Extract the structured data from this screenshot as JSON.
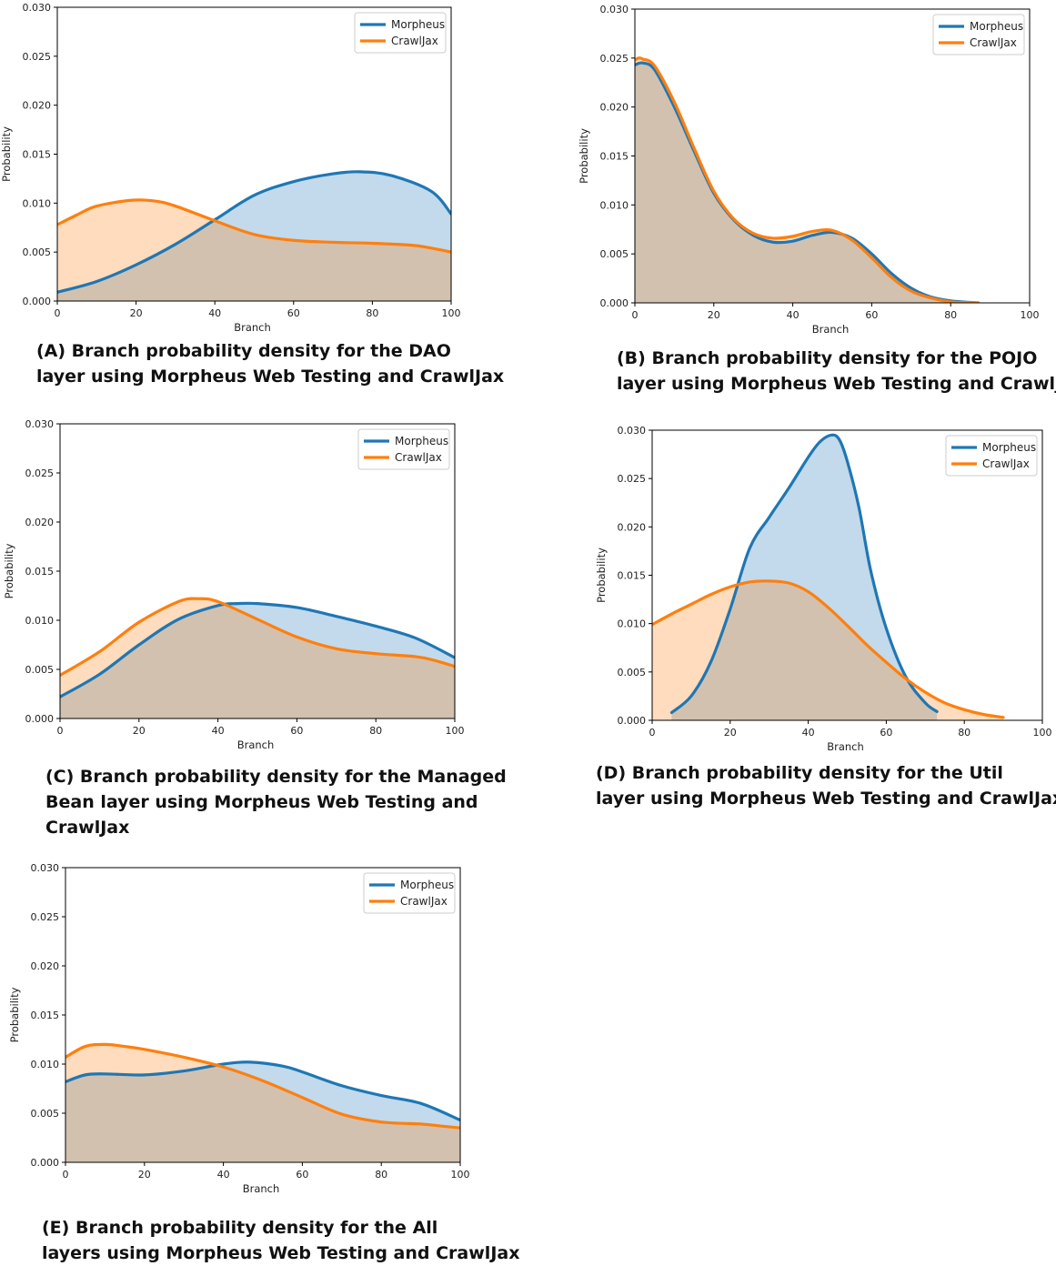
{
  "colors": {
    "morpheus": "#1f77b4",
    "crawljax": "#ff7f0e",
    "morpheus_fill": "#c3d9ec",
    "crawljax_fill": "#fdd9bd",
    "overlap_fill": "#d3c2b2"
  },
  "chart_data": [
    {
      "type": "area",
      "caption_lines": [
        "(A) Branch probability density for the DAO",
        "layer using Morpheus Web Testing and CrawlJax"
      ],
      "xlabel": "Branch",
      "ylabel": "Probability",
      "xlim": [
        0,
        100
      ],
      "ylim": [
        0,
        0.03
      ],
      "xticks": [
        "0",
        "20",
        "40",
        "60",
        "80",
        "100"
      ],
      "yticks": [
        "0.000",
        "0.005",
        "0.010",
        "0.015",
        "0.020",
        "0.025",
        "0.030"
      ],
      "legend_position": "top-right",
      "series": [
        {
          "name": "Morpheus",
          "x": [
            0,
            10,
            20,
            30,
            40,
            50,
            60,
            70,
            77,
            85,
            95,
            100
          ],
          "y": [
            0.0009,
            0.002,
            0.0037,
            0.0058,
            0.0083,
            0.0108,
            0.0122,
            0.013,
            0.0132,
            0.0128,
            0.0112,
            0.0089
          ]
        },
        {
          "name": "CrawlJax",
          "x": [
            0,
            5,
            10,
            19,
            25,
            30,
            40,
            50,
            60,
            70,
            80,
            90,
            95,
            100
          ],
          "y": [
            0.0078,
            0.0088,
            0.0097,
            0.0103,
            0.0102,
            0.0097,
            0.0082,
            0.0068,
            0.0062,
            0.006,
            0.0059,
            0.0057,
            0.0054,
            0.005
          ]
        }
      ]
    },
    {
      "type": "area",
      "caption_lines": [
        "(B) Branch probability density for the POJO",
        "layer using Morpheus Web Testing and Crawljax"
      ],
      "xlabel": "Branch",
      "ylabel": "Probability",
      "xlim": [
        0,
        100
      ],
      "ylim": [
        0,
        0.03
      ],
      "xticks": [
        "0",
        "20",
        "40",
        "60",
        "80",
        "100"
      ],
      "yticks": [
        "0.000",
        "0.005",
        "0.010",
        "0.015",
        "0.020",
        "0.025",
        "0.030"
      ],
      "legend_position": "top-right",
      "series": [
        {
          "name": "Morpheus",
          "x": [
            0,
            2,
            5,
            10,
            15,
            20,
            25,
            30,
            35,
            40,
            45,
            50,
            55,
            60,
            65,
            70,
            75,
            80,
            85,
            87
          ],
          "y": [
            0.0243,
            0.0245,
            0.0238,
            0.02,
            0.0155,
            0.0112,
            0.0085,
            0.0069,
            0.0062,
            0.0063,
            0.0069,
            0.0072,
            0.0066,
            0.005,
            0.003,
            0.0015,
            0.0006,
            0.0002,
            5e-05,
            0.0
          ]
        },
        {
          "name": "CrawlJax",
          "x": [
            0,
            1,
            2,
            5,
            10,
            15,
            20,
            25,
            30,
            35,
            40,
            45,
            50,
            55,
            60,
            65,
            70,
            75,
            80,
            85,
            87
          ],
          "y": [
            0.0248,
            0.025,
            0.0249,
            0.0242,
            0.0205,
            0.0158,
            0.0114,
            0.0086,
            0.0071,
            0.0066,
            0.0068,
            0.0073,
            0.0074,
            0.0064,
            0.0046,
            0.0026,
            0.0012,
            0.0005,
            0.0001,
            3e-05,
            0.0
          ]
        }
      ]
    },
    {
      "type": "area",
      "caption_lines": [
        "(C) Branch probability density for the Managed",
        "Bean layer using Morpheus Web Testing and",
        "CrawlJax"
      ],
      "xlabel": "Branch",
      "ylabel": "Probability",
      "xlim": [
        0,
        100
      ],
      "ylim": [
        0,
        0.03
      ],
      "xticks": [
        "0",
        "20",
        "40",
        "60",
        "80",
        "100"
      ],
      "yticks": [
        "0.000",
        "0.005",
        "0.010",
        "0.015",
        "0.020",
        "0.025",
        "0.030"
      ],
      "legend_position": "top-right",
      "series": [
        {
          "name": "Morpheus",
          "x": [
            0,
            10,
            20,
            30,
            40,
            45,
            50,
            60,
            70,
            80,
            90,
            100
          ],
          "y": [
            0.0022,
            0.0045,
            0.0075,
            0.0101,
            0.0115,
            0.0117,
            0.0117,
            0.0113,
            0.0104,
            0.0094,
            0.0082,
            0.0062
          ]
        },
        {
          "name": "CrawlJax",
          "x": [
            0,
            10,
            20,
            30,
            35,
            40,
            50,
            60,
            70,
            80,
            90,
            95,
            100
          ],
          "y": [
            0.0044,
            0.0068,
            0.0098,
            0.0119,
            0.0122,
            0.0119,
            0.0101,
            0.0083,
            0.0071,
            0.0066,
            0.0063,
            0.0059,
            0.0053
          ]
        }
      ]
    },
    {
      "type": "area",
      "caption_lines": [
        "(D) Branch probability density for the Util",
        "layer using Morpheus Web Testing and CrawlJax"
      ],
      "xlabel": "Branch",
      "ylabel": "Probability",
      "xlim": [
        0,
        100
      ],
      "ylim": [
        0,
        0.03
      ],
      "xticks": [
        "0",
        "20",
        "40",
        "60",
        "80",
        "100"
      ],
      "yticks": [
        "0.000",
        "0.005",
        "0.010",
        "0.015",
        "0.020",
        "0.025",
        "0.030"
      ],
      "legend_position": "top-right",
      "series": [
        {
          "name": "Morpheus",
          "x": [
            5,
            10,
            15,
            20,
            25,
            30,
            35,
            40,
            43,
            46,
            48,
            50,
            53,
            56,
            60,
            65,
            70,
            73
          ],
          "y": [
            0.0008,
            0.0025,
            0.006,
            0.0115,
            0.0178,
            0.021,
            0.024,
            0.0272,
            0.0288,
            0.0295,
            0.029,
            0.0268,
            0.022,
            0.0155,
            0.0095,
            0.0045,
            0.0018,
            0.0009
          ]
        },
        {
          "name": "CrawlJax",
          "x": [
            0,
            5,
            10,
            15,
            20,
            25,
            30,
            35,
            40,
            45,
            50,
            55,
            60,
            65,
            70,
            75,
            80,
            85,
            90
          ],
          "y": [
            0.0099,
            0.011,
            0.012,
            0.013,
            0.0138,
            0.0143,
            0.0144,
            0.0142,
            0.0133,
            0.0117,
            0.0098,
            0.0078,
            0.006,
            0.0043,
            0.0029,
            0.0018,
            0.0011,
            0.0006,
            0.0003
          ]
        }
      ]
    },
    {
      "type": "area",
      "caption_lines": [
        "(E) Branch probability density for the All",
        "layers using Morpheus Web Testing and CrawlJax"
      ],
      "xlabel": "Branch",
      "ylabel": "Probability",
      "xlim": [
        0,
        100
      ],
      "ylim": [
        0,
        0.03
      ],
      "xticks": [
        "0",
        "20",
        "40",
        "60",
        "80",
        "100"
      ],
      "yticks": [
        "0.000",
        "0.005",
        "0.010",
        "0.015",
        "0.020",
        "0.025",
        "0.030"
      ],
      "legend_position": "top-right",
      "series": [
        {
          "name": "Morpheus",
          "x": [
            0,
            5,
            10,
            20,
            30,
            40,
            47,
            55,
            60,
            70,
            80,
            90,
            100
          ],
          "y": [
            0.0082,
            0.0089,
            0.009,
            0.0089,
            0.0093,
            0.01,
            0.0102,
            0.0098,
            0.0092,
            0.0078,
            0.0068,
            0.006,
            0.0043
          ]
        },
        {
          "name": "CrawlJax",
          "x": [
            0,
            5,
            10,
            15,
            20,
            30,
            40,
            50,
            60,
            70,
            80,
            90,
            95,
            100
          ],
          "y": [
            0.0107,
            0.0118,
            0.012,
            0.0118,
            0.0115,
            0.0107,
            0.0097,
            0.0083,
            0.0066,
            0.0049,
            0.0041,
            0.0039,
            0.0037,
            0.0035
          ]
        }
      ]
    }
  ]
}
